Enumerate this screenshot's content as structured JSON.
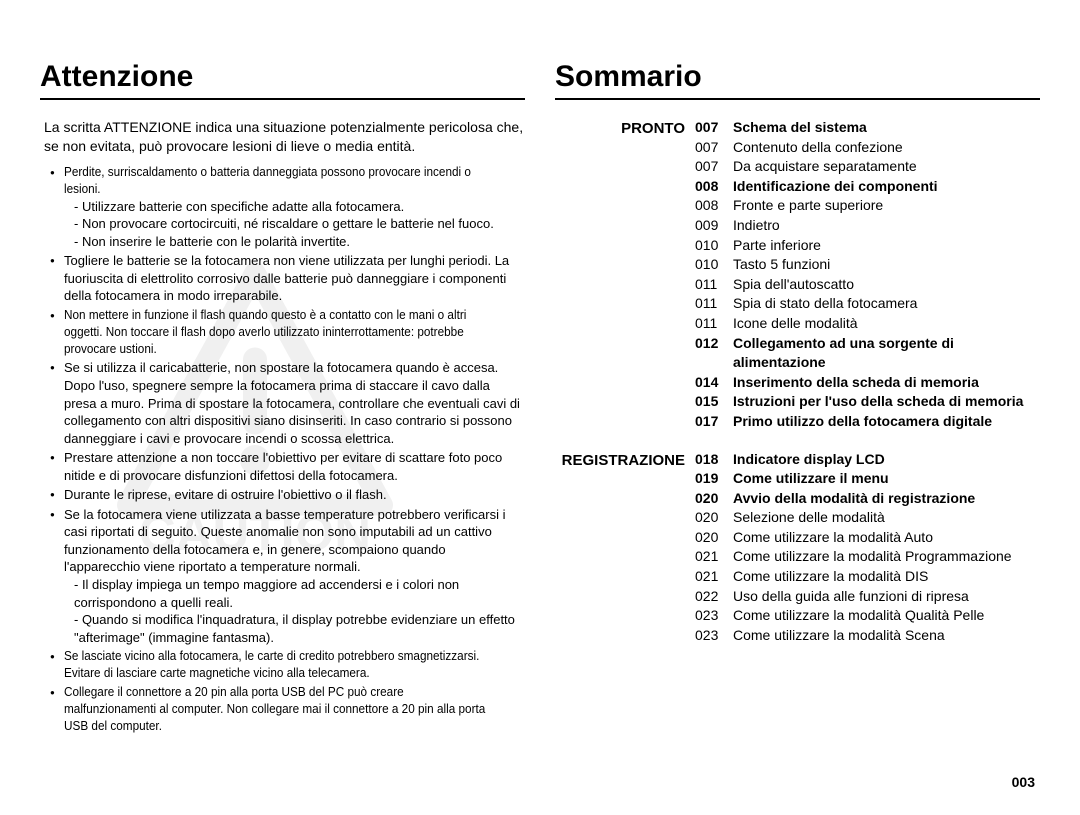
{
  "left": {
    "heading": "Attenzione",
    "intro": "La scritta ATTENZIONE indica una situazione potenzialmente pericolosa che, se non evitata, può provocare lesioni di lieve o media entità.",
    "bullets": [
      {
        "head": "Perdite, surriscaldamento o batteria danneggiata possono provocare incendi o lesioni.",
        "condensed": true,
        "sub": [
          "- Utilizzare batterie con specifiche adatte alla fotocamera.",
          "- Non provocare cortocircuiti, né riscaldare o gettare le batterie nel fuoco.",
          "- Non inserire le batterie con le polarità invertite."
        ]
      },
      {
        "head": "Togliere le batterie se la fotocamera non viene utilizzata per lunghi periodi. La fuoriuscita di elettrolito corrosivo dalle batterie può danneggiare i componenti della fotocamera in modo irreparabile."
      },
      {
        "head": "Non mettere in funzione il flash quando questo è a contatto con le mani o altri oggetti. Non toccare il flash dopo averlo utilizzato ininterrottamente: potrebbe provocare ustioni.",
        "condensed": true
      },
      {
        "head": "Se si utilizza il caricabatterie, non spostare la fotocamera quando è accesa. Dopo l'uso, spegnere sempre la fotocamera prima di staccare il cavo dalla presa a muro. Prima di spostare la fotocamera, controllare che eventuali cavi di collegamento con altri dispositivi siano disinseriti. In caso contrario si possono danneggiare i cavi e provocare incendi o scossa elettrica."
      },
      {
        "head": "Prestare attenzione a non toccare l'obiettivo per evitare di scattare foto poco nitide e di provocare disfunzioni difettosi della fotocamera."
      },
      {
        "head": "Durante le riprese, evitare di ostruire l'obiettivo o il flash."
      },
      {
        "head": "Se la fotocamera viene utilizzata a basse temperature potrebbero verificarsi i casi riportati di seguito. Queste anomalie non sono imputabili ad un cattivo funzionamento della fotocamera e, in genere, scompaiono quando l'apparecchio viene riportato a temperature normali.",
        "sub": [
          "- Il display impiega un tempo maggiore ad accendersi e i colori non corrispondono a quelli reali.",
          "- Quando si modifica l'inquadratura, il display potrebbe evidenziare un effetto \"afterimage\" (immagine fantasma)."
        ]
      },
      {
        "head": "Se lasciate vicino alla fotocamera, le carte di credito potrebbero smagnetizzarsi. Evitare di lasciare carte magnetiche vicino alla telecamera.",
        "condensed": true
      },
      {
        "head": "Collegare il connettore a 20 pin alla porta USB del PC può creare malfunzionamenti al computer. Non collegare mai il connettore a 20 pin alla porta USB del computer.",
        "condensed": true
      }
    ],
    "caution_text": "CAUTION"
  },
  "right": {
    "heading": "Sommario",
    "sections": [
      {
        "label": "PRONTO",
        "rows": [
          {
            "num": "007",
            "txt": "Schema del sistema",
            "bold": true
          },
          {
            "num": "007",
            "txt": "Contenuto della confezione"
          },
          {
            "num": "007",
            "txt": "Da acquistare separatamente"
          },
          {
            "num": "008",
            "txt": "Identificazione dei componenti",
            "bold": true
          },
          {
            "num": "008",
            "txt": "Fronte e parte superiore"
          },
          {
            "num": "009",
            "txt": "Indietro"
          },
          {
            "num": "010",
            "txt": "Parte inferiore"
          },
          {
            "num": "010",
            "txt": "Tasto 5 funzioni"
          },
          {
            "num": "011",
            "txt": "Spia dell'autoscatto"
          },
          {
            "num": "011",
            "txt": "Spia di stato della fotocamera"
          },
          {
            "num": "011",
            "txt": "Icone delle modalità"
          },
          {
            "num": "012",
            "txt": "Collegamento ad una sorgente di alimentazione",
            "bold": true
          },
          {
            "num": "014",
            "txt": "Inserimento della scheda di memoria",
            "bold": true
          },
          {
            "num": "015",
            "txt": "Istruzioni per l'uso della scheda di memoria",
            "bold": true
          },
          {
            "num": "017",
            "txt": "Primo utilizzo della fotocamera digitale",
            "bold": true
          }
        ]
      },
      {
        "label": "REGISTRAZIONE",
        "rows": [
          {
            "num": "018",
            "txt": "Indicatore display LCD",
            "bold": true
          },
          {
            "num": "019",
            "txt": "Come utilizzare il menu",
            "bold": true
          },
          {
            "num": "020",
            "txt": "Avvio della modalità di registrazione",
            "bold": true
          },
          {
            "num": "020",
            "txt": "Selezione delle modalità"
          },
          {
            "num": "020",
            "txt": "Come utilizzare la modalità Auto"
          },
          {
            "num": "021",
            "txt": "Come utilizzare la modalità Programmazione"
          },
          {
            "num": "021",
            "txt": "Come utilizzare la modalità DIS"
          },
          {
            "num": "022",
            "txt": "Uso della guida alle funzioni di ripresa"
          },
          {
            "num": "023",
            "txt": "Come utilizzare la modalità Qualità Pelle"
          },
          {
            "num": "023",
            "txt": "Come utilizzare la modalità Scena"
          }
        ]
      }
    ]
  },
  "page_number": "003"
}
